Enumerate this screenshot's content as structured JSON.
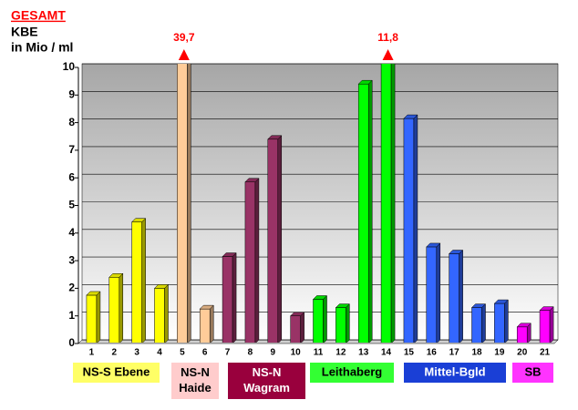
{
  "chart_data": {
    "type": "bar",
    "title": [
      "GESAMT",
      "KBE",
      "in Mio / ml"
    ],
    "categories": [
      "1",
      "2",
      "3",
      "4",
      "5",
      "6",
      "7",
      "8",
      "9",
      "10",
      "11",
      "12",
      "13",
      "14",
      "15",
      "16",
      "17",
      "18",
      "19",
      "20",
      "21"
    ],
    "values": [
      1.75,
      2.4,
      4.4,
      2.0,
      39.7,
      1.25,
      3.15,
      5.85,
      7.4,
      1.0,
      1.6,
      1.3,
      9.4,
      11.8,
      8.15,
      3.5,
      3.25,
      1.3,
      1.45,
      0.6,
      1.2
    ],
    "value_labels": [
      null,
      null,
      null,
      null,
      "39,7",
      null,
      null,
      null,
      null,
      null,
      null,
      null,
      null,
      "11,8",
      null,
      null,
      null,
      null,
      null,
      null,
      null
    ],
    "colors": [
      "#ffff00",
      "#ffff00",
      "#ffff00",
      "#ffff00",
      "#ffcc99",
      "#ffcc99",
      "#993366",
      "#993366",
      "#993366",
      "#993366",
      "#00ff00",
      "#00ff00",
      "#00ff00",
      "#00ff00",
      "#3366ff",
      "#3366ff",
      "#3366ff",
      "#3366ff",
      "#3366ff",
      "#ff00ff",
      "#ff00ff"
    ],
    "ylim": [
      0,
      10
    ],
    "yticks": [
      0,
      1,
      2,
      3,
      4,
      5,
      6,
      7,
      8,
      9,
      10
    ],
    "grid": true,
    "groups": [
      {
        "label": [
          "NS-S Ebene"
        ],
        "color": "#ffff66",
        "text_color": "#000000"
      },
      {
        "label": [
          "NS-N",
          "Haide"
        ],
        "color": "#ffcccc",
        "text_color": "#000000"
      },
      {
        "label": [
          "NS-N",
          "Wagram"
        ],
        "color": "#99003d",
        "text_color": "#ffffff"
      },
      {
        "label": [
          "Leithaberg"
        ],
        "color": "#33ff33",
        "text_color": "#000000"
      },
      {
        "label": [
          "Mittel-Bgld"
        ],
        "color": "#1a3fd6",
        "text_color": "#ffffff"
      },
      {
        "label": [
          "SB"
        ],
        "color": "#ff33ff",
        "text_color": "#000000"
      }
    ]
  }
}
